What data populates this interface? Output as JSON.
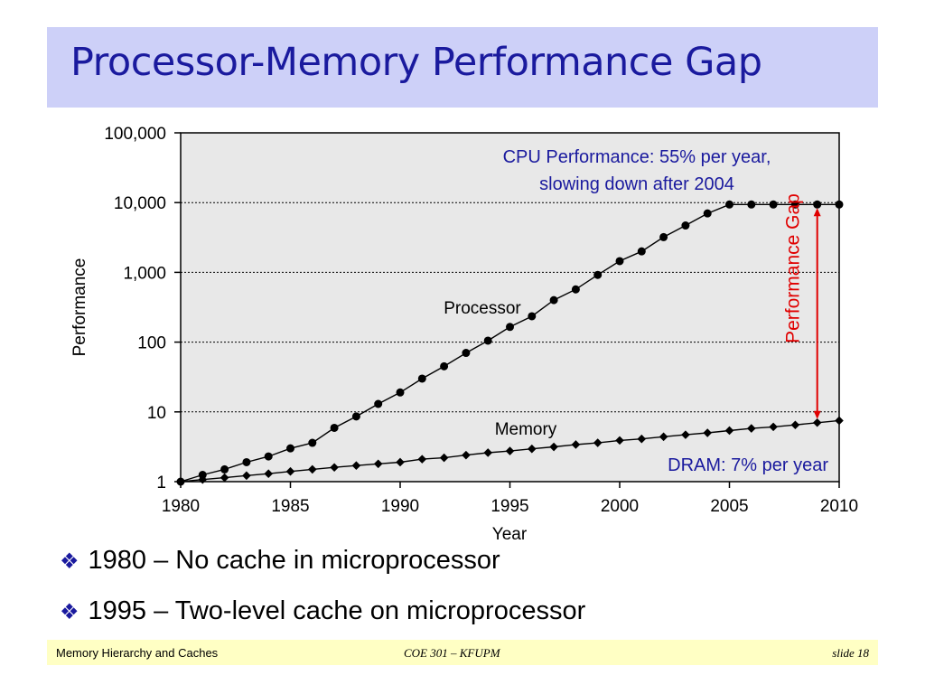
{
  "slide": {
    "title": "Processor-Memory Performance Gap",
    "bullets": [
      "1980 – No cache in microprocessor",
      "1995 – Two-level cache on microprocessor"
    ],
    "footer": {
      "left": "Memory Hierarchy and Caches",
      "center": "COE 301 – KFUPM",
      "right": "slide 18"
    }
  },
  "colors": {
    "title": "#1a1a9e",
    "title_bg": "#cdd0f8",
    "annotation": "#1a1a9e",
    "gap_arrow": "#e00000",
    "footer_bg": "#ffffc4",
    "plot_bg": "#e8e8e8"
  },
  "chart_data": {
    "type": "line",
    "xlabel": "Year",
    "ylabel": "Performance",
    "yscale": "log",
    "xlim": [
      1980,
      2010
    ],
    "ylim": [
      1,
      100000
    ],
    "x_ticks": [
      "1980",
      "1985",
      "1990",
      "1995",
      "2000",
      "2005",
      "2010"
    ],
    "y_ticks": [
      "1",
      "10",
      "100",
      "1,000",
      "10,000",
      "100,000"
    ],
    "gridlines": "horizontal dotted",
    "series": [
      {
        "name": "Processor",
        "marker": "circle",
        "x": [
          1980,
          1981,
          1982,
          1983,
          1984,
          1985,
          1986,
          1987,
          1988,
          1989,
          1990,
          1991,
          1992,
          1993,
          1994,
          1995,
          1996,
          1997,
          1998,
          1999,
          2000,
          2001,
          2002,
          2003,
          2004,
          2005,
          2006,
          2007,
          2008,
          2009,
          2010
        ],
        "y": [
          1,
          1.25,
          1.5,
          1.9,
          2.3,
          3,
          3.6,
          5.9,
          8.6,
          13,
          19,
          30,
          45,
          70,
          105,
          165,
          235,
          400,
          570,
          920,
          1450,
          2000,
          3200,
          4700,
          7000,
          9400,
          9400,
          9400,
          9400,
          9400,
          9400
        ]
      },
      {
        "name": "Memory",
        "marker": "diamond",
        "x": [
          1980,
          1981,
          1982,
          1983,
          1984,
          1985,
          1986,
          1987,
          1988,
          1989,
          1990,
          1991,
          1992,
          1993,
          1994,
          1995,
          1996,
          1997,
          1998,
          1999,
          2000,
          2001,
          2002,
          2003,
          2004,
          2005,
          2006,
          2007,
          2008,
          2009,
          2010
        ],
        "y": [
          1,
          1.07,
          1.14,
          1.22,
          1.3,
          1.4,
          1.5,
          1.6,
          1.7,
          1.8,
          1.9,
          2.1,
          2.2,
          2.4,
          2.6,
          2.75,
          2.95,
          3.15,
          3.4,
          3.6,
          3.9,
          4.1,
          4.4,
          4.7,
          5.0,
          5.4,
          5.8,
          6.1,
          6.5,
          7.0,
          7.5
        ]
      }
    ],
    "series_labels": [
      "Processor",
      "Memory"
    ],
    "annotations": {
      "cpu_line1": "CPU Performance: 55% per year,",
      "cpu_line2": "slowing down after 2004",
      "dram": "DRAM: 7% per year",
      "gap": "Performance Gap"
    },
    "gap_year": 2009
  }
}
